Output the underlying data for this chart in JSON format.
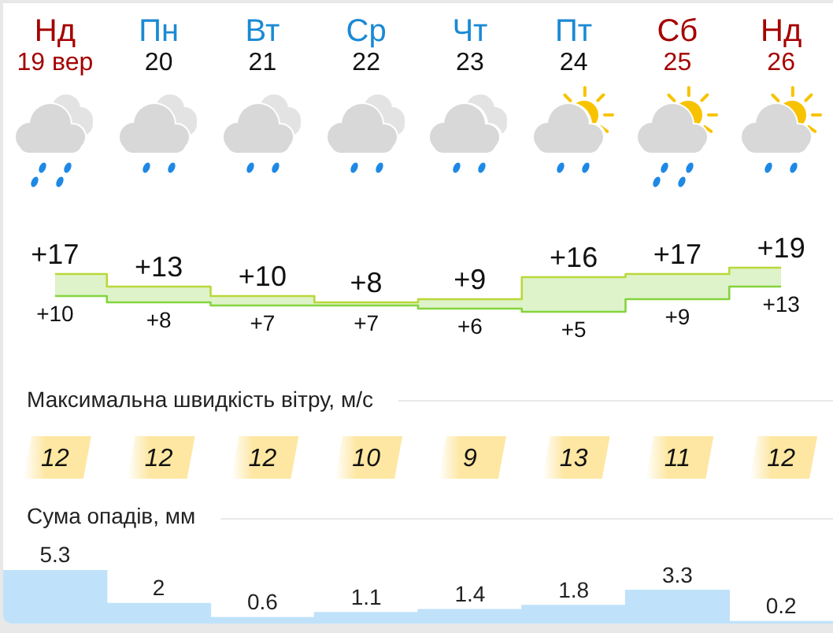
{
  "chart_data": [
    {
      "type": "step",
      "categories": [
        "Нд\n19 вер",
        "Пн\n20",
        "Вт\n21",
        "Ср\n22",
        "Чт\n23",
        "Пт\n24",
        "Сб\n25",
        "Нд\n26"
      ],
      "series": [
        {
          "color": "#b9d83a",
          "values": [
            17,
            13,
            10,
            8,
            9,
            16,
            17,
            19
          ],
          "value_labels": [
            "+17",
            "+13",
            "+10",
            "+8",
            "+9",
            "+16",
            "+17",
            "+19"
          ]
        },
        {
          "color": "#84d43c",
          "values": [
            10,
            8,
            7,
            7,
            6,
            5,
            9,
            13
          ],
          "value_labels": [
            "+10",
            "+8",
            "+7",
            "+7",
            "+6",
            "+5",
            "+9",
            "+13"
          ],
          "lower": [
            10,
            8,
            7,
            7,
            6,
            5,
            9,
            13
          ],
          "upper": [
            17,
            13,
            10,
            8,
            9,
            16,
            17,
            19
          ]
        }
      ]
    },
    {
      "type": "other",
      "title": "Максимальна швидкість вітру, м/с",
      "values": [
        12,
        12,
        12,
        10,
        9,
        13,
        11,
        12
      ],
      "color": "#fde7a2",
      "data_labels": true
    },
    {
      "type": "bar",
      "title": "Сума опадів, мм",
      "categories": [
        null,
        null,
        null,
        null,
        null,
        null,
        null,
        null
      ],
      "values": [
        5.3,
        2,
        0.6,
        1.1,
        1.4,
        1.8,
        3.3,
        0.2
      ],
      "color": "#bfe2fa",
      "data_labels": true
    }
  ]
}
